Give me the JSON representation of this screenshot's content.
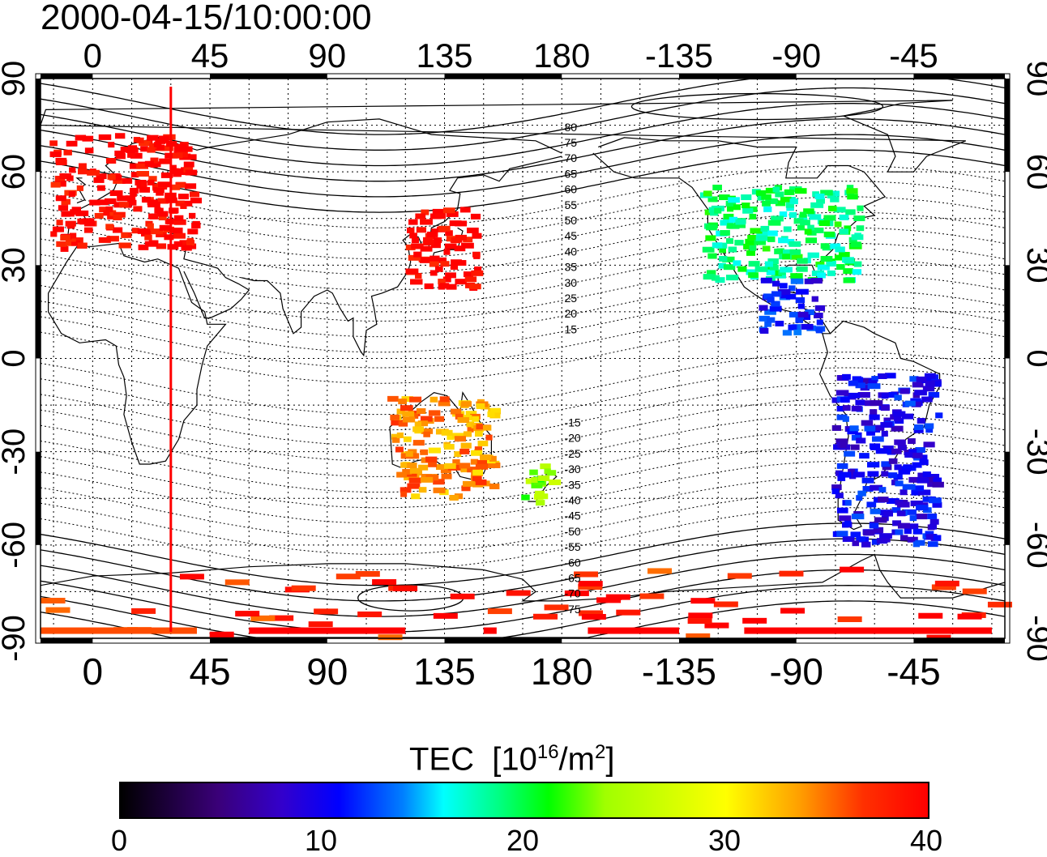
{
  "title": "2000-04-15/10:00:00",
  "map": {
    "projection": "equirectangular",
    "longitude_range": [
      -20,
      350
    ],
    "latitude_range": [
      -90,
      90
    ],
    "lon_tick_labels": [
      "0",
      "45",
      "90",
      "135",
      "180",
      "-135",
      "-90",
      "-45"
    ],
    "lat_tick_labels": [
      "90",
      "60",
      "30",
      "0",
      "-30",
      "-60",
      "-90"
    ],
    "contour_labels": [
      "80",
      "75",
      "70",
      "65",
      "60",
      "55",
      "50",
      "45",
      "40",
      "35",
      "30",
      "25",
      "20",
      "15",
      "-15",
      "-20",
      "-25",
      "-30",
      "-35",
      "-40",
      "-45",
      "-50",
      "-55",
      "-60",
      "-65",
      "-70",
      "-75"
    ],
    "terminator_longitude": 30,
    "colors": {
      "terminator": "#ff0000",
      "coast": "#000000",
      "grid": "#000000"
    }
  },
  "colorbar": {
    "label": "TEC",
    "unit_prefix": "[10",
    "unit_exp": "16",
    "unit_mid": "/m",
    "unit_exp2": "2",
    "unit_suffix": "]",
    "ticks": [
      "0",
      "10",
      "20",
      "30",
      "40"
    ],
    "range": [
      0,
      40
    ],
    "colormap": "jet-like (black-purple-blue-cyan-green-yellow-orange-red)"
  },
  "chart_data": {
    "type": "heatmap",
    "title": "2000-04-15/10:00:00",
    "xlabel": "",
    "ylabel": "",
    "xlim": [
      -20,
      350
    ],
    "ylim": [
      -90,
      90
    ],
    "colorbar_label": "TEC [10^16/m^2]",
    "value_range": [
      0,
      40
    ],
    "regions": [
      {
        "name": "Europe",
        "lon": [
          -15,
          40
        ],
        "lat": [
          35,
          72
        ],
        "tec": 40
      },
      {
        "name": "East Asia",
        "lon": [
          122,
          148
        ],
        "lat": [
          22,
          48
        ],
        "tec": 40
      },
      {
        "name": "Australia",
        "lon": [
          115,
          155
        ],
        "lat": [
          -45,
          -12
        ],
        "tec": 34
      },
      {
        "name": "New Zealand",
        "lon": [
          166,
          178
        ],
        "lat": [
          -47,
          -34
        ],
        "tec": 24
      },
      {
        "name": "North America",
        "lon": [
          -125,
          -65
        ],
        "lat": [
          25,
          55
        ],
        "tec": 19
      },
      {
        "name": "Central America",
        "lon": [
          -105,
          -80
        ],
        "lat": [
          8,
          25
        ],
        "tec": 11
      },
      {
        "name": "South America",
        "lon": [
          -75,
          -35
        ],
        "lat": [
          -60,
          -5
        ],
        "tec": 10
      },
      {
        "name": "Antarctica",
        "lon": [
          -20,
          350
        ],
        "lat": [
          -90,
          -68
        ],
        "tec": 38
      }
    ]
  }
}
